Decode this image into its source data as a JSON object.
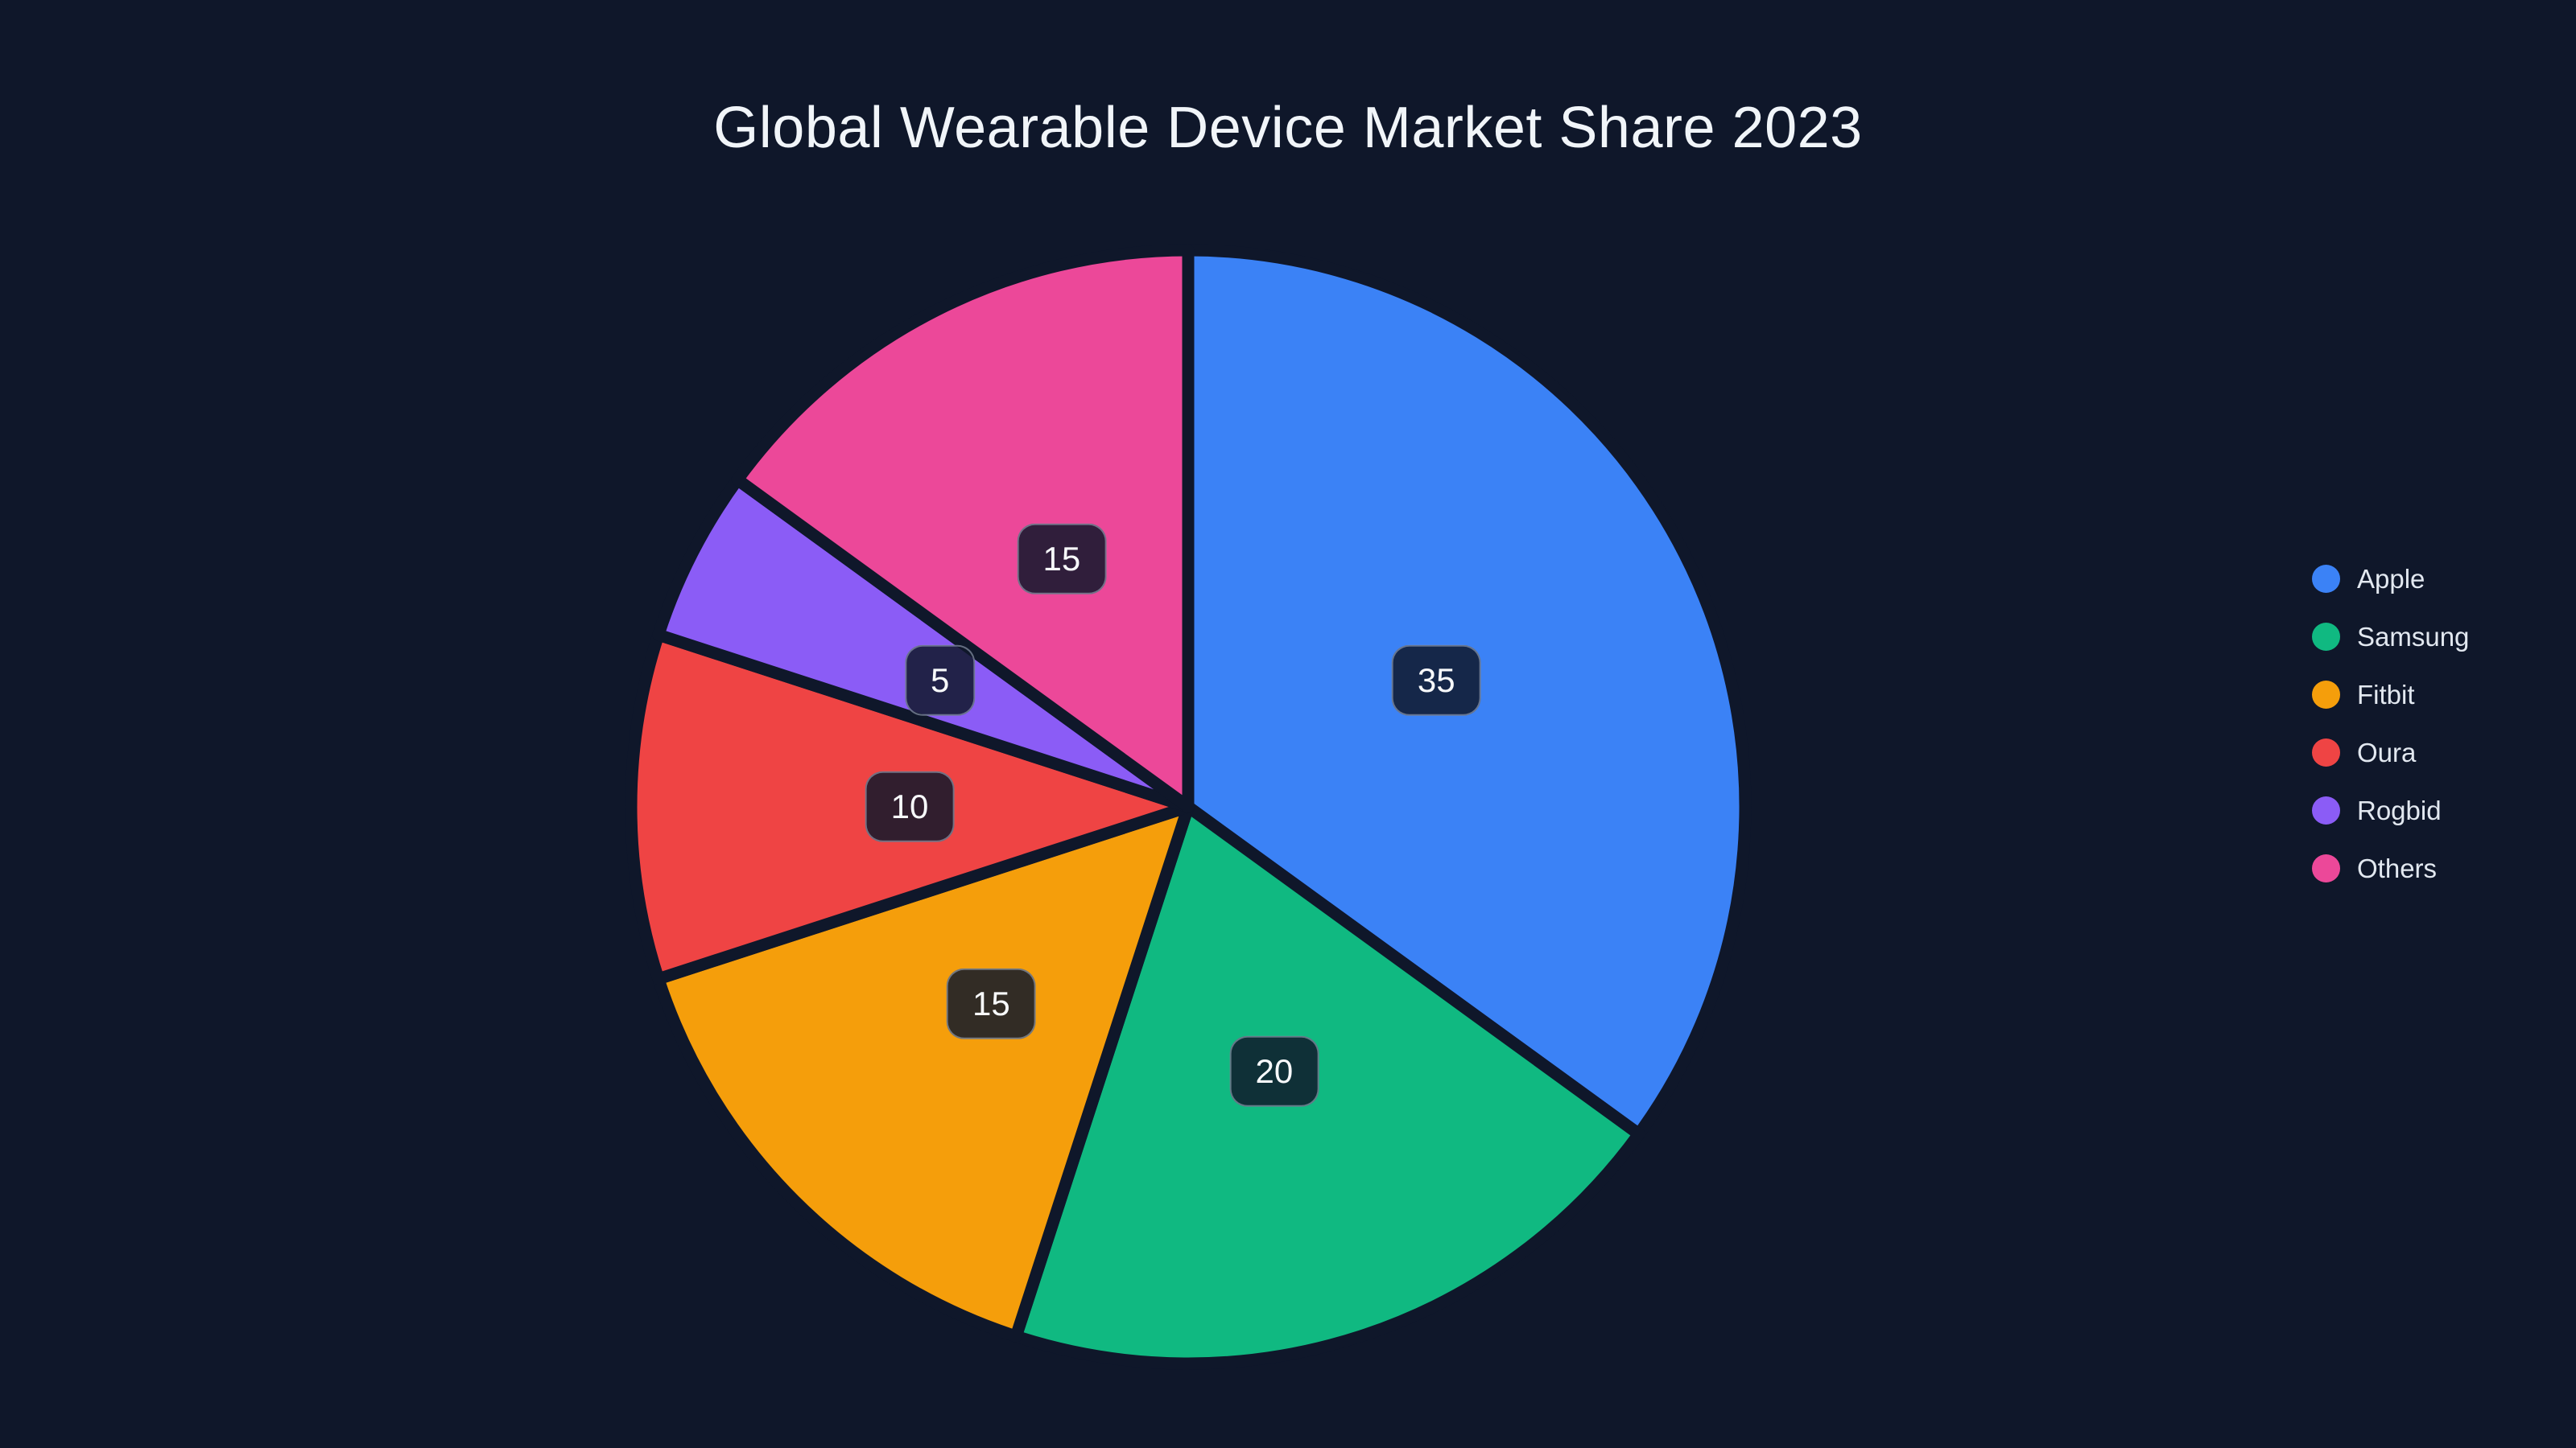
{
  "page": {
    "background": "#0f172a"
  },
  "chart_data": {
    "type": "pie",
    "title": "Global Wearable Device Market Share 2023",
    "labels": [
      "Apple",
      "Samsung",
      "Fitbit",
      "Oura",
      "Rogbid",
      "Others"
    ],
    "values": [
      35,
      20,
      15,
      10,
      5,
      15
    ],
    "colors": [
      "#3b82f6",
      "#10b981",
      "#f59e0b",
      "#ef4444",
      "#8b5cf6",
      "#ec4899"
    ],
    "start_angle_deg": 0,
    "direction": "clockwise",
    "legend_position": "right",
    "value_labels_shown": true
  },
  "legend": {
    "items": [
      {
        "label": "Apple",
        "color": "#3b82f6"
      },
      {
        "label": "Samsung",
        "color": "#10b981"
      },
      {
        "label": "Fitbit",
        "color": "#f59e0b"
      },
      {
        "label": "Oura",
        "color": "#ef4444"
      },
      {
        "label": "Rogbid",
        "color": "#8b5cf6"
      },
      {
        "label": "Others",
        "color": "#ec4899"
      }
    ]
  },
  "styles": {
    "title_color": "#f1f5f9",
    "legend_text_color": "#e2e8f0",
    "value_chip_background": "rgba(15,23,42,0.85)",
    "value_chip_text_color": "#f8fafc"
  }
}
